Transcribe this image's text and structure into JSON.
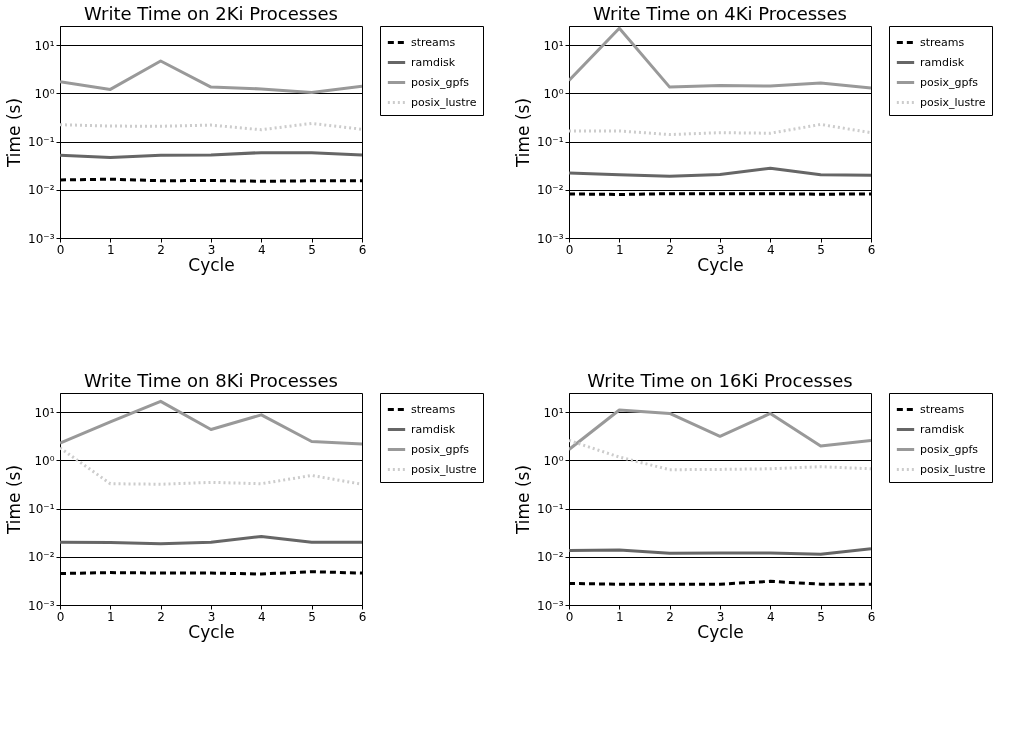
{
  "chart_data": [
    {
      "type": "line",
      "title": "Write Time on 2Ki Processes",
      "xlabel": "Cycle",
      "ylabel": "Time (s)",
      "x": [
        0,
        1,
        2,
        3,
        4,
        5,
        6
      ],
      "xlim": [
        0,
        6
      ],
      "xticks": [
        0,
        1,
        2,
        3,
        4,
        5,
        6
      ],
      "ylim": [
        0.001,
        25
      ],
      "yticks": [
        {
          "value": 0.001,
          "label": "10⁻³"
        },
        {
          "value": 0.01,
          "label": "10⁻²"
        },
        {
          "value": 0.1,
          "label": "10⁻¹"
        },
        {
          "value": 1,
          "label": "10⁰"
        },
        {
          "value": 10,
          "label": "10¹"
        }
      ],
      "log": "y",
      "grid": "y",
      "legend": "right",
      "series": [
        {
          "name": "streams",
          "color": "#000000",
          "line_style": "dashed",
          "values": [
            0.016,
            0.0166,
            0.0154,
            0.0156,
            0.015,
            0.0154,
            0.0154
          ]
        },
        {
          "name": "ramdisk",
          "color": "#666666",
          "line_style": "solid",
          "values": [
            0.052,
            0.047,
            0.052,
            0.053,
            0.059,
            0.059,
            0.053
          ]
        },
        {
          "name": "posix_gpfs",
          "color": "#999999",
          "line_style": "solid",
          "values": [
            1.74,
            1.21,
            4.7,
            1.35,
            1.24,
            1.04,
            1.4
          ]
        },
        {
          "name": "posix_lustre",
          "color": "#cccccc",
          "line_style": "dotted",
          "values": [
            0.224,
            0.21,
            0.208,
            0.22,
            0.176,
            0.238,
            0.18
          ]
        }
      ]
    },
    {
      "type": "line",
      "title": "Write Time on 4Ki Processes",
      "xlabel": "Cycle",
      "ylabel": "Time (s)",
      "x": [
        0,
        1,
        2,
        3,
        4,
        5,
        6
      ],
      "xlim": [
        0,
        6
      ],
      "xticks": [
        0,
        1,
        2,
        3,
        4,
        5,
        6
      ],
      "ylim": [
        0.001,
        25
      ],
      "yticks": [
        {
          "value": 0.001,
          "label": "10⁻³"
        },
        {
          "value": 0.01,
          "label": "10⁻²"
        },
        {
          "value": 0.1,
          "label": "10⁻¹"
        },
        {
          "value": 1,
          "label": "10⁰"
        },
        {
          "value": 10,
          "label": "10¹"
        }
      ],
      "log": "y",
      "grid": "y",
      "legend": "right",
      "series": [
        {
          "name": "streams",
          "color": "#000000",
          "line_style": "dashed",
          "values": [
            0.0082,
            0.008,
            0.0083,
            0.0083,
            0.0083,
            0.0081,
            0.0082
          ]
        },
        {
          "name": "ramdisk",
          "color": "#666666",
          "line_style": "solid",
          "values": [
            0.0224,
            0.0204,
            0.019,
            0.0208,
            0.0279,
            0.0206,
            0.0201
          ]
        },
        {
          "name": "posix_gpfs",
          "color": "#999999",
          "line_style": "solid",
          "values": [
            1.85,
            22.4,
            1.35,
            1.45,
            1.42,
            1.64,
            1.29
          ]
        },
        {
          "name": "posix_lustre",
          "color": "#cccccc",
          "line_style": "dotted",
          "values": [
            0.166,
            0.166,
            0.14,
            0.153,
            0.149,
            0.227,
            0.153
          ]
        }
      ]
    },
    {
      "type": "line",
      "title": "Write Time on 8Ki Processes",
      "xlabel": "Cycle",
      "ylabel": "Time (s)",
      "x": [
        0,
        1,
        2,
        3,
        4,
        5,
        6
      ],
      "xlim": [
        0,
        6
      ],
      "xticks": [
        0,
        1,
        2,
        3,
        4,
        5,
        6
      ],
      "ylim": [
        0.001,
        25
      ],
      "yticks": [
        {
          "value": 0.001,
          "label": "10⁻³"
        },
        {
          "value": 0.01,
          "label": "10⁻²"
        },
        {
          "value": 0.1,
          "label": "10⁻¹"
        },
        {
          "value": 1,
          "label": "10⁰"
        },
        {
          "value": 10,
          "label": "10¹"
        }
      ],
      "log": "y",
      "grid": "y",
      "legend": "right",
      "series": [
        {
          "name": "streams",
          "color": "#000000",
          "line_style": "dashed",
          "values": [
            0.0045,
            0.0047,
            0.0046,
            0.0046,
            0.0044,
            0.0049,
            0.0046
          ]
        },
        {
          "name": "ramdisk",
          "color": "#666666",
          "line_style": "solid",
          "values": [
            0.02,
            0.0198,
            0.0186,
            0.02,
            0.0264,
            0.02,
            0.02
          ]
        },
        {
          "name": "posix_gpfs",
          "color": "#999999",
          "line_style": "solid",
          "values": [
            2.29,
            6.3,
            16.8,
            4.37,
            8.8,
            2.46,
            2.18
          ]
        },
        {
          "name": "posix_lustre",
          "color": "#cccccc",
          "line_style": "dotted",
          "values": [
            1.82,
            0.328,
            0.32,
            0.35,
            0.328,
            0.487,
            0.32
          ]
        }
      ]
    },
    {
      "type": "line",
      "title": "Write Time on 16Ki Processes",
      "xlabel": "Cycle",
      "ylabel": "Time (s)",
      "x": [
        0,
        1,
        2,
        3,
        4,
        5,
        6
      ],
      "xlim": [
        0,
        6
      ],
      "xticks": [
        0,
        1,
        2,
        3,
        4,
        5,
        6
      ],
      "ylim": [
        0.001,
        25
      ],
      "yticks": [
        {
          "value": 0.001,
          "label": "10⁻³"
        },
        {
          "value": 0.01,
          "label": "10⁻²"
        },
        {
          "value": 0.1,
          "label": "10⁻¹"
        },
        {
          "value": 1,
          "label": "10⁰"
        },
        {
          "value": 10,
          "label": "10¹"
        }
      ],
      "log": "y",
      "grid": "y",
      "legend": "right",
      "series": [
        {
          "name": "streams",
          "color": "#000000",
          "line_style": "dashed",
          "values": [
            0.0028,
            0.0027,
            0.0027,
            0.0027,
            0.0031,
            0.0027,
            0.0027
          ]
        },
        {
          "name": "ramdisk",
          "color": "#666666",
          "line_style": "solid",
          "values": [
            0.0135,
            0.0138,
            0.0118,
            0.012,
            0.012,
            0.0113,
            0.0147
          ]
        },
        {
          "name": "posix_gpfs",
          "color": "#999999",
          "line_style": "solid",
          "values": [
            1.68,
            11.1,
            9.4,
            3.16,
            9.4,
            1.98,
            2.6
          ]
        },
        {
          "name": "posix_lustre",
          "color": "#cccccc",
          "line_style": "dotted",
          "values": [
            2.6,
            1.17,
            0.64,
            0.65,
            0.67,
            0.74,
            0.67
          ]
        }
      ]
    }
  ]
}
